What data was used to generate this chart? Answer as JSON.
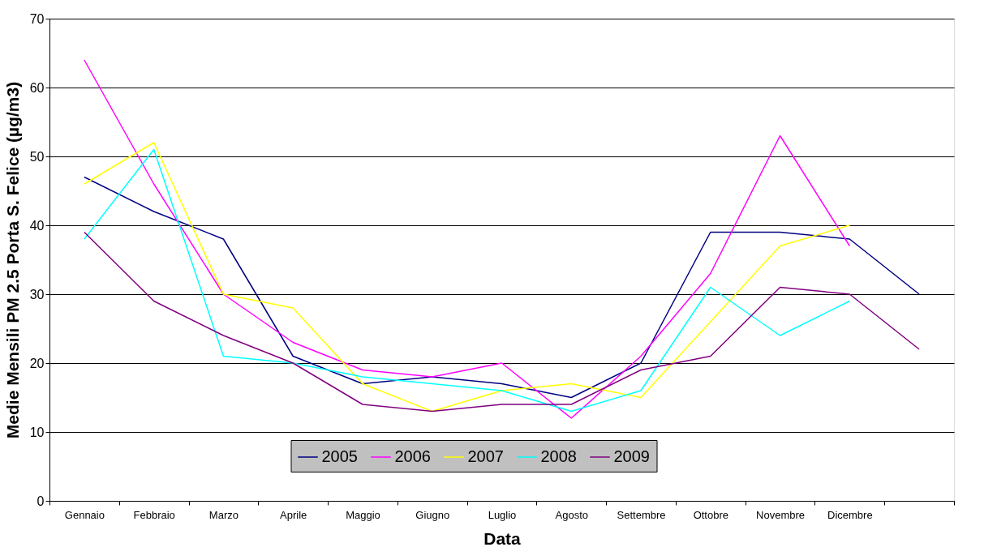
{
  "chart_data": {
    "type": "line",
    "xlabel": "Data",
    "ylabel": "Medie Mensili PM 2.5 Porta S. Felice (µg/m3)",
    "categories": [
      "Gennaio",
      "Febbraio",
      "Marzo",
      "Aprile",
      "Maggio",
      "Giugno",
      "Luglio",
      "Agosto",
      "Settembre",
      "Ottobre",
      "Novembre",
      "Dicembre",
      null
    ],
    "series": [
      {
        "name": "2005",
        "color": "#000080",
        "values": [
          47,
          42,
          38,
          21,
          17,
          18,
          17,
          15,
          20,
          39,
          39,
          38,
          30
        ]
      },
      {
        "name": "2006",
        "color": "#ff00ff",
        "values": [
          64,
          46,
          30,
          23,
          19,
          18,
          20,
          12,
          21,
          33,
          53,
          37,
          null
        ]
      },
      {
        "name": "2007",
        "color": "#ffff00",
        "values": [
          46,
          52,
          30,
          28,
          17,
          13,
          16,
          17,
          15,
          26,
          37,
          40,
          null
        ]
      },
      {
        "name": "2008",
        "color": "#00ffff",
        "values": [
          38,
          51,
          21,
          20,
          18,
          17,
          16,
          13,
          16,
          31,
          24,
          29,
          null
        ]
      },
      {
        "name": "2009",
        "color": "#800080",
        "values": [
          39,
          29,
          24,
          20,
          14,
          13,
          14,
          14,
          19,
          21,
          31,
          30,
          22
        ]
      }
    ],
    "ylim": [
      0,
      70
    ],
    "yticks": [
      0,
      10,
      20,
      30,
      40,
      50,
      60,
      70
    ],
    "grid": "y",
    "legend": "bottom",
    "marker": "none",
    "line_style": "solid"
  }
}
